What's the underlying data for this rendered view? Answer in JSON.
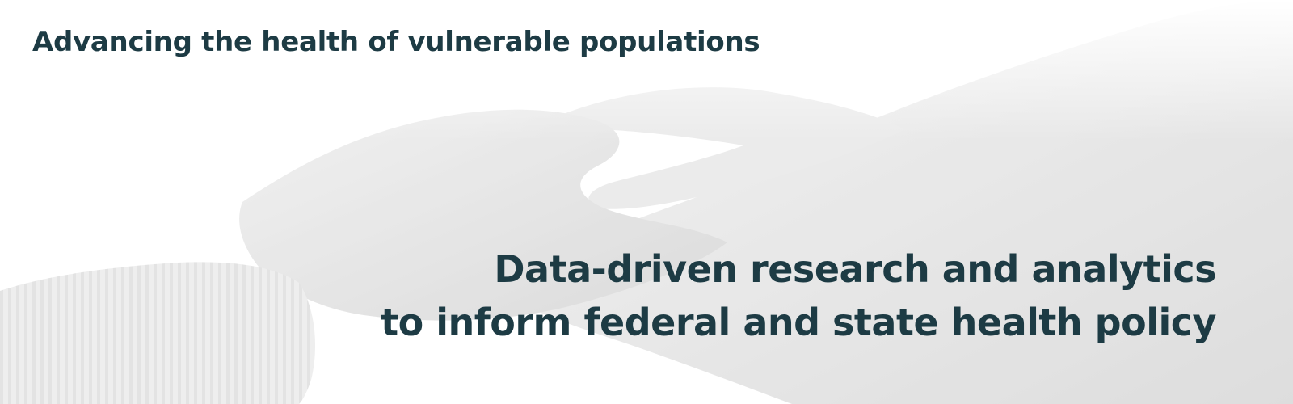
{
  "banner": {
    "tagline": "Advancing the health of vulnerable populations",
    "headline": {
      "line1": "Data-driven research and analytics",
      "line2": "to inform federal and state health policy"
    },
    "image": {
      "subject": "holding-hands-photo",
      "text_color": "#1d3b44"
    }
  }
}
